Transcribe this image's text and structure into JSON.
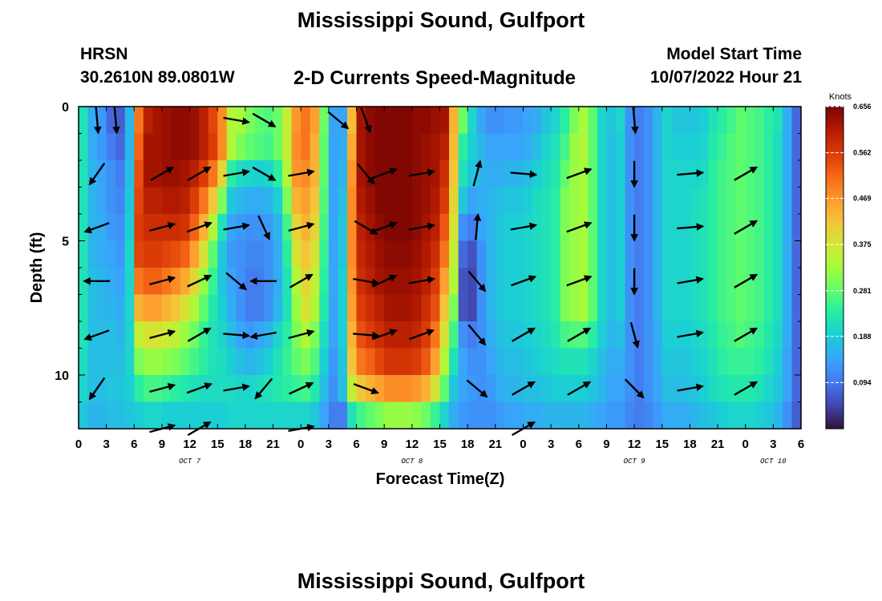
{
  "header": {
    "title": "Mississippi Sound, Gulfport",
    "station": "HRSN",
    "coords": "30.2610N  89.0801W",
    "subtitle": "2-D Currents Speed-Magnitude",
    "model_start_label": "Model Start Time",
    "model_start_value": "10/07/2022 Hour 21",
    "bottom_title": "Mississippi Sound, Gulfport"
  },
  "chart_data": {
    "type": "heatmap",
    "xlabel": "Forecast Time(Z)",
    "ylabel": "Depth (ft)",
    "x_tick_labels": [
      "0",
      "3",
      "6",
      "9",
      "12",
      "15",
      "18",
      "21",
      "0",
      "3",
      "6",
      "9",
      "12",
      "15",
      "18",
      "21",
      "0",
      "3",
      "6",
      "9",
      "12",
      "15",
      "18",
      "21",
      "0",
      "3",
      "6"
    ],
    "date_labels": [
      {
        "label": "OCT 7",
        "hour": 12
      },
      {
        "label": "OCT 8",
        "hour": 36
      },
      {
        "label": "OCT 9",
        "hour": 60
      },
      {
        "label": "OCT 10",
        "hour": 75
      }
    ],
    "xlim_hours": [
      0,
      78
    ],
    "ylim_ft": [
      0,
      12
    ],
    "y_ticks": [
      0,
      5,
      10
    ],
    "y_tick_labels": [
      "0",
      "5",
      "10"
    ],
    "colorbar": {
      "title": "Knots",
      "ticks": [
        "0.656",
        "0.562",
        "0.469",
        "0.375",
        "0.281",
        "0.188",
        "0.094"
      ],
      "tick_values": [
        0.656,
        0.562,
        0.469,
        0.375,
        0.281,
        0.188,
        0.094
      ],
      "range": [
        0,
        0.656
      ]
    },
    "hours": [
      0,
      1,
      2,
      3,
      4,
      5,
      6,
      7,
      8,
      9,
      10,
      11,
      12,
      13,
      14,
      15,
      16,
      17,
      18,
      19,
      20,
      21,
      22,
      23,
      24,
      25,
      26,
      27,
      28,
      29,
      30,
      31,
      32,
      33,
      34,
      35,
      36,
      37,
      38,
      39,
      40,
      41,
      42,
      43,
      44,
      45,
      46,
      47,
      48,
      49,
      50,
      51,
      52,
      53,
      54,
      55,
      56,
      57,
      58,
      59,
      60,
      61,
      62,
      63,
      64,
      65,
      66,
      67,
      68,
      69,
      70,
      71,
      72,
      73,
      74,
      75,
      76,
      77
    ],
    "depths_ft": [
      0.5,
      1.5,
      2.5,
      3.5,
      4.5,
      5.5,
      6.5,
      7.5,
      8.5,
      9.5,
      10.5,
      11.5
    ],
    "speed_knots": [
      [
        0.22,
        0.15,
        0.13,
        0.08,
        0.07,
        0.16,
        0.5,
        0.6,
        0.62,
        0.63,
        0.64,
        0.64,
        0.63,
        0.6,
        0.55,
        0.48,
        0.34,
        0.33,
        0.3,
        0.28,
        0.27,
        0.29,
        0.36,
        0.47,
        0.5,
        0.46,
        0.29,
        0.14,
        0.14,
        0.43,
        0.62,
        0.64,
        0.65,
        0.65,
        0.65,
        0.65,
        0.64,
        0.64,
        0.63,
        0.62,
        0.44,
        0.29,
        0.2,
        0.14,
        0.12,
        0.12,
        0.13,
        0.13,
        0.14,
        0.15,
        0.18,
        0.2,
        0.24,
        0.3,
        0.33,
        0.28,
        0.2,
        0.18,
        0.2,
        0.12,
        0.1,
        0.12,
        0.16,
        0.2,
        0.18,
        0.18,
        0.18,
        0.19,
        0.22,
        0.24,
        0.26,
        0.28,
        0.27,
        0.26,
        0.24,
        0.22,
        0.15,
        0.08
      ],
      [
        0.22,
        0.15,
        0.13,
        0.1,
        0.08,
        0.16,
        0.52,
        0.62,
        0.62,
        0.63,
        0.64,
        0.64,
        0.63,
        0.6,
        0.56,
        0.48,
        0.34,
        0.3,
        0.28,
        0.27,
        0.26,
        0.29,
        0.36,
        0.48,
        0.5,
        0.44,
        0.28,
        0.14,
        0.15,
        0.45,
        0.62,
        0.64,
        0.65,
        0.65,
        0.65,
        0.65,
        0.64,
        0.63,
        0.62,
        0.6,
        0.43,
        0.24,
        0.19,
        0.16,
        0.14,
        0.14,
        0.14,
        0.14,
        0.15,
        0.17,
        0.2,
        0.22,
        0.26,
        0.32,
        0.34,
        0.28,
        0.2,
        0.17,
        0.19,
        0.12,
        0.1,
        0.12,
        0.16,
        0.2,
        0.19,
        0.19,
        0.19,
        0.2,
        0.23,
        0.25,
        0.27,
        0.28,
        0.27,
        0.26,
        0.24,
        0.21,
        0.15,
        0.08
      ],
      [
        0.22,
        0.16,
        0.14,
        0.12,
        0.1,
        0.17,
        0.54,
        0.62,
        0.62,
        0.63,
        0.63,
        0.62,
        0.6,
        0.56,
        0.5,
        0.4,
        0.24,
        0.21,
        0.2,
        0.19,
        0.2,
        0.24,
        0.34,
        0.47,
        0.48,
        0.44,
        0.28,
        0.14,
        0.16,
        0.47,
        0.62,
        0.64,
        0.65,
        0.65,
        0.65,
        0.65,
        0.64,
        0.63,
        0.62,
        0.58,
        0.42,
        0.22,
        0.18,
        0.16,
        0.15,
        0.15,
        0.16,
        0.16,
        0.17,
        0.19,
        0.21,
        0.23,
        0.28,
        0.32,
        0.33,
        0.28,
        0.2,
        0.17,
        0.19,
        0.12,
        0.1,
        0.12,
        0.16,
        0.2,
        0.2,
        0.2,
        0.2,
        0.21,
        0.24,
        0.26,
        0.27,
        0.28,
        0.27,
        0.26,
        0.24,
        0.21,
        0.15,
        0.08
      ],
      [
        0.22,
        0.16,
        0.14,
        0.12,
        0.11,
        0.18,
        0.55,
        0.6,
        0.6,
        0.61,
        0.61,
        0.6,
        0.56,
        0.5,
        0.42,
        0.3,
        0.18,
        0.16,
        0.15,
        0.15,
        0.16,
        0.19,
        0.3,
        0.44,
        0.46,
        0.42,
        0.27,
        0.14,
        0.17,
        0.48,
        0.61,
        0.63,
        0.65,
        0.65,
        0.65,
        0.65,
        0.64,
        0.63,
        0.61,
        0.56,
        0.4,
        0.18,
        0.14,
        0.15,
        0.16,
        0.17,
        0.18,
        0.18,
        0.19,
        0.21,
        0.22,
        0.24,
        0.3,
        0.32,
        0.33,
        0.28,
        0.2,
        0.17,
        0.19,
        0.12,
        0.1,
        0.12,
        0.16,
        0.2,
        0.2,
        0.2,
        0.21,
        0.22,
        0.24,
        0.26,
        0.27,
        0.28,
        0.27,
        0.26,
        0.24,
        0.21,
        0.15,
        0.08
      ],
      [
        0.22,
        0.16,
        0.15,
        0.13,
        0.12,
        0.19,
        0.56,
        0.58,
        0.58,
        0.58,
        0.58,
        0.57,
        0.52,
        0.44,
        0.34,
        0.22,
        0.14,
        0.13,
        0.12,
        0.12,
        0.13,
        0.16,
        0.26,
        0.4,
        0.44,
        0.4,
        0.26,
        0.14,
        0.18,
        0.48,
        0.6,
        0.62,
        0.64,
        0.65,
        0.65,
        0.65,
        0.64,
        0.62,
        0.6,
        0.53,
        0.38,
        0.12,
        0.1,
        0.14,
        0.16,
        0.18,
        0.19,
        0.19,
        0.2,
        0.21,
        0.22,
        0.24,
        0.3,
        0.32,
        0.33,
        0.28,
        0.2,
        0.17,
        0.19,
        0.12,
        0.1,
        0.12,
        0.16,
        0.2,
        0.2,
        0.2,
        0.21,
        0.22,
        0.24,
        0.26,
        0.27,
        0.28,
        0.27,
        0.26,
        0.24,
        0.21,
        0.15,
        0.08
      ],
      [
        0.22,
        0.16,
        0.15,
        0.14,
        0.13,
        0.2,
        0.55,
        0.56,
        0.56,
        0.55,
        0.54,
        0.52,
        0.46,
        0.38,
        0.28,
        0.18,
        0.13,
        0.12,
        0.11,
        0.11,
        0.12,
        0.15,
        0.24,
        0.38,
        0.42,
        0.38,
        0.25,
        0.14,
        0.18,
        0.48,
        0.59,
        0.61,
        0.63,
        0.64,
        0.64,
        0.64,
        0.63,
        0.61,
        0.58,
        0.5,
        0.36,
        0.08,
        0.06,
        0.12,
        0.16,
        0.18,
        0.19,
        0.19,
        0.2,
        0.21,
        0.22,
        0.24,
        0.3,
        0.32,
        0.33,
        0.28,
        0.2,
        0.17,
        0.19,
        0.12,
        0.1,
        0.12,
        0.16,
        0.2,
        0.2,
        0.2,
        0.21,
        0.22,
        0.24,
        0.26,
        0.27,
        0.28,
        0.27,
        0.26,
        0.24,
        0.21,
        0.15,
        0.08
      ],
      [
        0.22,
        0.17,
        0.16,
        0.15,
        0.14,
        0.2,
        0.5,
        0.52,
        0.52,
        0.5,
        0.48,
        0.45,
        0.4,
        0.32,
        0.25,
        0.18,
        0.14,
        0.12,
        0.1,
        0.1,
        0.12,
        0.15,
        0.22,
        0.34,
        0.4,
        0.36,
        0.24,
        0.14,
        0.19,
        0.47,
        0.58,
        0.6,
        0.62,
        0.63,
        0.63,
        0.63,
        0.62,
        0.6,
        0.56,
        0.46,
        0.34,
        0.06,
        0.05,
        0.12,
        0.16,
        0.18,
        0.19,
        0.19,
        0.2,
        0.21,
        0.22,
        0.24,
        0.3,
        0.32,
        0.33,
        0.28,
        0.2,
        0.17,
        0.19,
        0.12,
        0.1,
        0.12,
        0.16,
        0.2,
        0.2,
        0.2,
        0.21,
        0.22,
        0.24,
        0.26,
        0.27,
        0.28,
        0.27,
        0.26,
        0.24,
        0.21,
        0.15,
        0.08
      ],
      [
        0.22,
        0.17,
        0.16,
        0.16,
        0.15,
        0.2,
        0.44,
        0.46,
        0.46,
        0.44,
        0.42,
        0.38,
        0.34,
        0.28,
        0.23,
        0.19,
        0.15,
        0.12,
        0.1,
        0.1,
        0.12,
        0.16,
        0.22,
        0.32,
        0.38,
        0.34,
        0.23,
        0.14,
        0.19,
        0.46,
        0.56,
        0.58,
        0.6,
        0.62,
        0.62,
        0.62,
        0.61,
        0.58,
        0.54,
        0.42,
        0.3,
        0.06,
        0.05,
        0.12,
        0.16,
        0.18,
        0.19,
        0.19,
        0.2,
        0.21,
        0.22,
        0.24,
        0.3,
        0.32,
        0.33,
        0.28,
        0.2,
        0.17,
        0.19,
        0.12,
        0.1,
        0.12,
        0.16,
        0.2,
        0.2,
        0.2,
        0.21,
        0.22,
        0.24,
        0.26,
        0.27,
        0.28,
        0.27,
        0.26,
        0.24,
        0.21,
        0.15,
        0.08
      ],
      [
        0.22,
        0.17,
        0.17,
        0.17,
        0.16,
        0.2,
        0.36,
        0.38,
        0.38,
        0.37,
        0.35,
        0.32,
        0.29,
        0.25,
        0.22,
        0.2,
        0.17,
        0.14,
        0.13,
        0.14,
        0.16,
        0.2,
        0.24,
        0.3,
        0.34,
        0.3,
        0.21,
        0.14,
        0.19,
        0.44,
        0.54,
        0.56,
        0.58,
        0.6,
        0.6,
        0.6,
        0.59,
        0.56,
        0.5,
        0.38,
        0.26,
        0.12,
        0.1,
        0.12,
        0.15,
        0.17,
        0.18,
        0.18,
        0.19,
        0.2,
        0.21,
        0.23,
        0.26,
        0.27,
        0.27,
        0.24,
        0.19,
        0.16,
        0.17,
        0.12,
        0.1,
        0.12,
        0.15,
        0.19,
        0.19,
        0.19,
        0.2,
        0.21,
        0.23,
        0.25,
        0.26,
        0.27,
        0.26,
        0.25,
        0.23,
        0.2,
        0.15,
        0.08
      ],
      [
        0.21,
        0.17,
        0.17,
        0.17,
        0.17,
        0.2,
        0.3,
        0.32,
        0.32,
        0.31,
        0.3,
        0.28,
        0.26,
        0.24,
        0.22,
        0.21,
        0.19,
        0.17,
        0.16,
        0.17,
        0.19,
        0.22,
        0.25,
        0.28,
        0.3,
        0.27,
        0.19,
        0.13,
        0.18,
        0.42,
        0.5,
        0.52,
        0.55,
        0.57,
        0.57,
        0.57,
        0.56,
        0.53,
        0.46,
        0.34,
        0.22,
        0.14,
        0.12,
        0.12,
        0.14,
        0.16,
        0.17,
        0.17,
        0.18,
        0.19,
        0.2,
        0.21,
        0.22,
        0.22,
        0.22,
        0.2,
        0.17,
        0.15,
        0.15,
        0.12,
        0.1,
        0.12,
        0.15,
        0.18,
        0.18,
        0.18,
        0.19,
        0.2,
        0.22,
        0.24,
        0.25,
        0.25,
        0.25,
        0.24,
        0.22,
        0.19,
        0.14,
        0.08
      ],
      [
        0.2,
        0.17,
        0.17,
        0.18,
        0.18,
        0.19,
        0.24,
        0.26,
        0.26,
        0.25,
        0.24,
        0.23,
        0.22,
        0.21,
        0.21,
        0.21,
        0.21,
        0.2,
        0.2,
        0.21,
        0.22,
        0.23,
        0.24,
        0.25,
        0.26,
        0.23,
        0.17,
        0.12,
        0.17,
        0.36,
        0.42,
        0.44,
        0.46,
        0.48,
        0.48,
        0.48,
        0.47,
        0.44,
        0.38,
        0.28,
        0.18,
        0.14,
        0.13,
        0.12,
        0.13,
        0.15,
        0.16,
        0.16,
        0.17,
        0.17,
        0.18,
        0.19,
        0.19,
        0.19,
        0.19,
        0.18,
        0.16,
        0.14,
        0.14,
        0.12,
        0.1,
        0.12,
        0.14,
        0.17,
        0.17,
        0.17,
        0.18,
        0.19,
        0.21,
        0.22,
        0.23,
        0.23,
        0.23,
        0.22,
        0.2,
        0.18,
        0.14,
        0.08
      ],
      [
        0.18,
        0.16,
        0.16,
        0.17,
        0.17,
        0.18,
        0.19,
        0.2,
        0.2,
        0.19,
        0.19,
        0.19,
        0.19,
        0.19,
        0.19,
        0.19,
        0.2,
        0.2,
        0.2,
        0.2,
        0.2,
        0.2,
        0.2,
        0.2,
        0.2,
        0.18,
        0.14,
        0.1,
        0.1,
        0.22,
        0.26,
        0.28,
        0.3,
        0.32,
        0.32,
        0.32,
        0.31,
        0.29,
        0.25,
        0.2,
        0.15,
        0.13,
        0.12,
        0.12,
        0.12,
        0.13,
        0.14,
        0.14,
        0.15,
        0.15,
        0.16,
        0.16,
        0.16,
        0.16,
        0.16,
        0.15,
        0.14,
        0.13,
        0.13,
        0.11,
        0.1,
        0.11,
        0.13,
        0.15,
        0.15,
        0.15,
        0.16,
        0.17,
        0.18,
        0.19,
        0.2,
        0.2,
        0.2,
        0.19,
        0.18,
        0.16,
        0.12,
        0.07
      ]
    ],
    "vector_depths_ft": [
      0.5,
      2.5,
      4.5,
      6.5,
      8.5,
      10.5,
      12
    ],
    "vectors": [
      {
        "hour": 2,
        "dirs": [
          175,
          215,
          250,
          270,
          250,
          215,
          0
        ]
      },
      {
        "hour": 4,
        "dirs": [
          175,
          0,
          0,
          0,
          0,
          0,
          0
        ]
      },
      {
        "hour": 9,
        "dirs": [
          0,
          60,
          75,
          75,
          75,
          75,
          75
        ]
      },
      {
        "hour": 13,
        "dirs": [
          0,
          60,
          70,
          65,
          60,
          70,
          60
        ]
      },
      {
        "hour": 17,
        "dirs": [
          100,
          80,
          80,
          130,
          95,
          80,
          0
        ]
      },
      {
        "hour": 20,
        "dirs": [
          120,
          120,
          155,
          270,
          260,
          220,
          0
        ]
      },
      {
        "hour": 24,
        "dirs": [
          0,
          80,
          75,
          60,
          75,
          65,
          80
        ]
      },
      {
        "hour": 28,
        "dirs": [
          130,
          0,
          0,
          0,
          0,
          0,
          0
        ]
      },
      {
        "hour": 31,
        "dirs": [
          160,
          140,
          120,
          100,
          95,
          110,
          0
        ]
      },
      {
        "hour": 33,
        "dirs": [
          0,
          70,
          70,
          65,
          70,
          0,
          0
        ]
      },
      {
        "hour": 37,
        "dirs": [
          0,
          80,
          80,
          80,
          70,
          0,
          0
        ]
      },
      {
        "hour": 43,
        "dirs": [
          0,
          15,
          5,
          140,
          140,
          130,
          0
        ]
      },
      {
        "hour": 48,
        "dirs": [
          0,
          95,
          80,
          70,
          60,
          60,
          60
        ]
      },
      {
        "hour": 54,
        "dirs": [
          0,
          70,
          70,
          70,
          60,
          60,
          0
        ]
      },
      {
        "hour": 60,
        "dirs": [
          175,
          180,
          180,
          180,
          165,
          135,
          0
        ]
      },
      {
        "hour": 66,
        "dirs": [
          0,
          85,
          85,
          80,
          80,
          80,
          0
        ]
      },
      {
        "hour": 72,
        "dirs": [
          0,
          60,
          60,
          60,
          60,
          60,
          0
        ]
      }
    ]
  }
}
